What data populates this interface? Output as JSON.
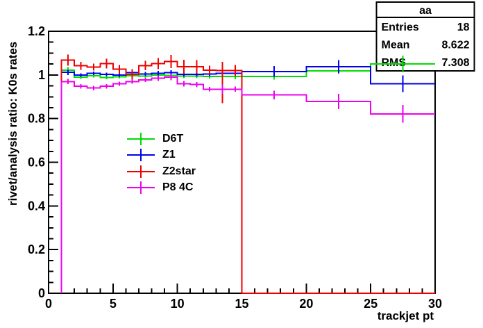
{
  "canvas": {
    "background": "#ffffff",
    "frame_color": "#000000"
  },
  "stats_box": {
    "title": "aa",
    "rows": [
      {
        "label": "Entries",
        "value": "18"
      },
      {
        "label": "Mean",
        "value": "8.622"
      },
      {
        "label": "RMS",
        "value": "7.308"
      }
    ]
  },
  "chart_data": {
    "type": "line",
    "subtype": "step-histogram-ratio-with-error-bars",
    "title": "aa",
    "xlabel": "trackjet pt",
    "ylabel": "rivet/analysis ratio: K0s rates",
    "xlim": [
      0,
      30
    ],
    "ylim": [
      0,
      1.2
    ],
    "grid": false,
    "legend_position": "inside-center-left",
    "x_major_ticks": [
      0,
      5,
      10,
      15,
      20,
      25,
      30
    ],
    "x_major_labels": [
      "0",
      "5",
      "10",
      "15",
      "20",
      "25",
      "30"
    ],
    "x_minor_step": 1,
    "y_major_ticks": [
      0,
      0.2,
      0.4,
      0.6,
      0.8,
      1.0,
      1.2
    ],
    "y_major_labels": [
      "0",
      "0.2",
      "0.4",
      "0.6",
      "0.8",
      "1",
      "1.2"
    ],
    "y_minor_step": 0.05,
    "bin_edges": [
      1,
      2,
      3,
      4,
      5,
      6,
      7,
      8,
      9,
      10,
      11,
      12,
      13,
      14,
      15,
      20,
      25,
      30
    ],
    "series": [
      {
        "name": "D6T",
        "color": "#00dd00",
        "values": [
          1.022,
          0.99,
          0.996,
          0.988,
          0.992,
          0.997,
          0.994,
          1.0,
          0.998,
          0.995,
          0.995,
          0.993,
          0.993,
          0.993,
          0.993,
          1.019,
          1.05
        ],
        "err": [
          0.014,
          0.008,
          0.008,
          0.008,
          0.008,
          0.008,
          0.008,
          0.01,
          0.01,
          0.01,
          0.01,
          0.01,
          0.012,
          0.012,
          0.015,
          0.013,
          0.038
        ]
      },
      {
        "name": "Z1",
        "color": "#0000ee",
        "values": [
          1.012,
          1.0,
          1.007,
          1.002,
          1.0,
          1.01,
          1.005,
          1.008,
          1.01,
          1.003,
          1.003,
          1.005,
          1.007,
          1.007,
          1.016,
          1.038,
          0.96
        ],
        "err": [
          0.012,
          0.008,
          0.008,
          0.008,
          0.008,
          0.008,
          0.008,
          0.01,
          0.012,
          0.01,
          0.01,
          0.01,
          0.012,
          0.012,
          0.025,
          0.03,
          0.038
        ]
      },
      {
        "name": "Z2star",
        "color": "#ee0000",
        "values": [
          1.068,
          1.042,
          1.036,
          1.052,
          1.026,
          1.002,
          1.043,
          1.052,
          1.061,
          1.038,
          1.038,
          1.022,
          1.02,
          1.02,
          0,
          0,
          0
        ],
        "err_up": [
          0.025,
          0.018,
          0.016,
          0.022,
          0.02,
          0.025,
          0.022,
          0.025,
          0.03,
          0.032,
          0.03,
          0.02,
          0.04,
          0.025,
          0,
          0,
          0
        ],
        "err_down": [
          0.025,
          0.018,
          0.016,
          0.022,
          0.02,
          0.025,
          0.022,
          0.025,
          0.03,
          0.032,
          0.03,
          0.02,
          0.15,
          0.025,
          0,
          0,
          0
        ]
      },
      {
        "name": "P8 4C",
        "color": "#ee00ee",
        "values": [
          0.97,
          0.948,
          0.94,
          0.948,
          0.96,
          0.97,
          0.977,
          0.985,
          0.99,
          0.96,
          0.956,
          0.935,
          0.935,
          0.935,
          0.908,
          0.878,
          0.822
        ],
        "err": [
          0.012,
          0.01,
          0.01,
          0.01,
          0.01,
          0.01,
          0.01,
          0.012,
          0.014,
          0.013,
          0.012,
          0.01,
          0.022,
          0.012,
          0.02,
          0.035,
          0.04
        ]
      }
    ]
  }
}
